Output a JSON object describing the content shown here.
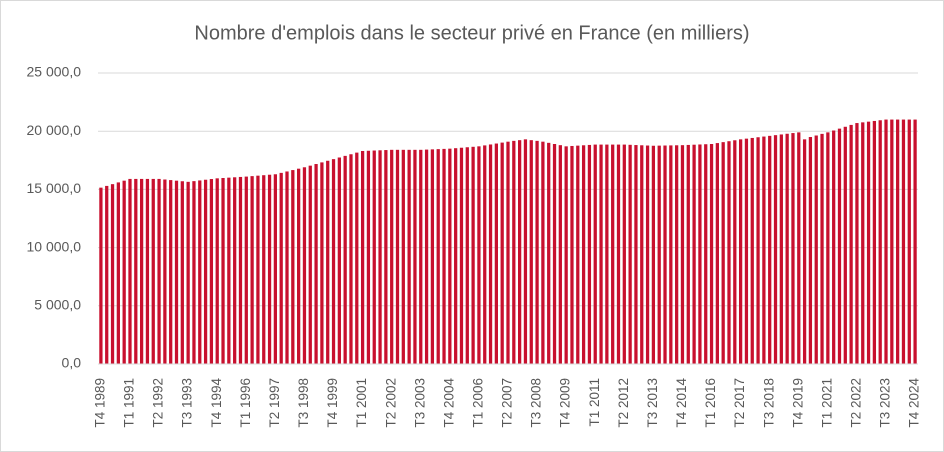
{
  "chart_data": {
    "type": "bar",
    "title": "Nombre d'emplois dans le secteur privé en France (en milliers)",
    "categories": [
      "T4 1989",
      null,
      null,
      null,
      null,
      "T1 1991",
      null,
      null,
      null,
      null,
      "T2 1992",
      null,
      null,
      null,
      null,
      "T3 1993",
      null,
      null,
      null,
      null,
      "T4 1994",
      null,
      null,
      null,
      null,
      "T1 1996",
      null,
      null,
      null,
      null,
      "T2 1997",
      null,
      null,
      null,
      null,
      "T3 1998",
      null,
      null,
      null,
      null,
      "T4 1999",
      null,
      null,
      null,
      null,
      "T1 2001",
      null,
      null,
      null,
      null,
      "T2 2002",
      null,
      null,
      null,
      null,
      "T3 2003",
      null,
      null,
      null,
      null,
      "T4 2004",
      null,
      null,
      null,
      null,
      "T1 2006",
      null,
      null,
      null,
      null,
      "T2 2007",
      null,
      null,
      null,
      null,
      "T3 2008",
      null,
      null,
      null,
      null,
      "T4 2009",
      null,
      null,
      null,
      null,
      "T1 2011",
      null,
      null,
      null,
      null,
      "T2 2012",
      null,
      null,
      null,
      null,
      "T3 2013",
      null,
      null,
      null,
      null,
      "T4 2014",
      null,
      null,
      null,
      null,
      "T1 2016",
      null,
      null,
      null,
      null,
      "T2 2017",
      null,
      null,
      null,
      null,
      "T3 2018",
      null,
      null,
      null,
      null,
      "T4 2019",
      null,
      null,
      null,
      null,
      "T1 2021",
      null,
      null,
      null,
      null,
      "T2 2022",
      null,
      null,
      null,
      null,
      "T3 2023",
      null,
      null,
      null,
      null,
      "T4 2024"
    ],
    "values": [
      15150,
      15300,
      15450,
      15600,
      15750,
      15900,
      15900,
      15900,
      15900,
      15900,
      15900,
      15850,
      15800,
      15750,
      15700,
      15650,
      15710,
      15770,
      15830,
      15890,
      15950,
      15980,
      16010,
      16040,
      16070,
      16100,
      16140,
      16180,
      16220,
      16260,
      16300,
      16420,
      16540,
      16660,
      16780,
      16900,
      17040,
      17180,
      17320,
      17460,
      17600,
      17740,
      17880,
      18020,
      18160,
      18300,
      18320,
      18340,
      18360,
      18380,
      18400,
      18400,
      18400,
      18400,
      18400,
      18400,
      18420,
      18440,
      18460,
      18480,
      18500,
      18540,
      18580,
      18620,
      18660,
      18700,
      18780,
      18860,
      18940,
      19020,
      19100,
      19170,
      19230,
      19300,
      19230,
      19170,
      19100,
      19000,
      18900,
      18800,
      18700,
      18730,
      18760,
      18790,
      18820,
      18850,
      18850,
      18850,
      18850,
      18850,
      18850,
      18830,
      18810,
      18790,
      18770,
      18750,
      18760,
      18770,
      18780,
      18790,
      18800,
      18820,
      18840,
      18860,
      18880,
      18900,
      18980,
      19060,
      19140,
      19220,
      19300,
      19360,
      19420,
      19480,
      19540,
      19600,
      19660,
      19720,
      19780,
      19840,
      19900,
      19300,
      19500,
      19630,
      19770,
      19900,
      20060,
      20220,
      20380,
      20540,
      20700,
      20760,
      20820,
      20880,
      20940,
      21000,
      21000,
      21000,
      21000,
      21000,
      21000
    ],
    "color": "#c8102e",
    "ylim": [
      0,
      25000
    ],
    "yticks": [
      {
        "value": 0,
        "label": "0,0"
      },
      {
        "value": 5000,
        "label": "5 000,0"
      },
      {
        "value": 10000,
        "label": "10 000,0"
      },
      {
        "value": 15000,
        "label": "15 000,0"
      },
      {
        "value": 20000,
        "label": "20 000,0"
      },
      {
        "value": 25000,
        "label": "25 000,0"
      }
    ],
    "grid": true
  }
}
